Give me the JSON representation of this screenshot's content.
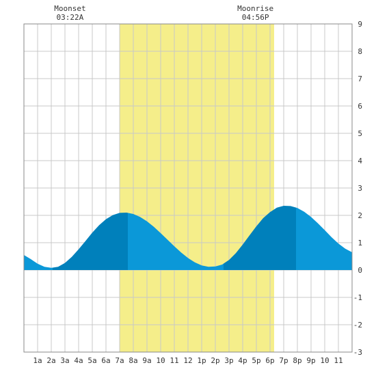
{
  "chart_data": {
    "type": "area",
    "title": "",
    "xlabel": "",
    "ylabel": "",
    "xlim": [
      0,
      24
    ],
    "ylim": [
      -3,
      9
    ],
    "grid": true,
    "x_ticks": [
      {
        "x": 1,
        "label": "1a"
      },
      {
        "x": 2,
        "label": "2a"
      },
      {
        "x": 3,
        "label": "3a"
      },
      {
        "x": 4,
        "label": "4a"
      },
      {
        "x": 5,
        "label": "5a"
      },
      {
        "x": 6,
        "label": "6a"
      },
      {
        "x": 7,
        "label": "7a"
      },
      {
        "x": 8,
        "label": "8a"
      },
      {
        "x": 9,
        "label": "9a"
      },
      {
        "x": 10,
        "label": "10"
      },
      {
        "x": 11,
        "label": "11"
      },
      {
        "x": 12,
        "label": "12"
      },
      {
        "x": 13,
        "label": "1p"
      },
      {
        "x": 14,
        "label": "2p"
      },
      {
        "x": 15,
        "label": "3p"
      },
      {
        "x": 16,
        "label": "4p"
      },
      {
        "x": 17,
        "label": "5p"
      },
      {
        "x": 18,
        "label": "6p"
      },
      {
        "x": 19,
        "label": "7p"
      },
      {
        "x": 20,
        "label": "8p"
      },
      {
        "x": 21,
        "label": "9p"
      },
      {
        "x": 22,
        "label": "10"
      },
      {
        "x": 23,
        "label": "11"
      }
    ],
    "y_ticks": [
      "-3",
      "-2",
      "-1",
      "0",
      "1",
      "2",
      "3",
      "4",
      "5",
      "6",
      "7",
      "8",
      "9"
    ],
    "daylight": {
      "start": 7.0,
      "end": 18.3
    },
    "extrema": [
      {
        "x": 2.1,
        "y": 0.08,
        "kind": "low"
      },
      {
        "x": 7.6,
        "y": 2.1,
        "kind": "high"
      },
      {
        "x": 14.6,
        "y": 0.13,
        "kind": "low"
      },
      {
        "x": 19.9,
        "y": 2.35,
        "kind": "high"
      }
    ],
    "series": [
      {
        "x": [
          0,
          0.5,
          1,
          1.5,
          2,
          2.5,
          3,
          3.5,
          4,
          4.5,
          5,
          5.5,
          6,
          6.5,
          7,
          7.5,
          8,
          8.5,
          9,
          9.5,
          10,
          10.5,
          11,
          11.5,
          12,
          12.5,
          13,
          13.5,
          14,
          14.5,
          15,
          15.5,
          16,
          16.5,
          17,
          17.5,
          18,
          18.5,
          19,
          19.5,
          20,
          20.5,
          21,
          21.5,
          22,
          22.5,
          23,
          23.5,
          24
        ],
        "values": [
          0.55,
          0.4,
          0.23,
          0.12,
          0.08,
          0.12,
          0.26,
          0.48,
          0.76,
          1.06,
          1.37,
          1.64,
          1.86,
          2.01,
          2.09,
          2.1,
          2.05,
          1.94,
          1.78,
          1.58,
          1.35,
          1.11,
          0.87,
          0.64,
          0.44,
          0.28,
          0.17,
          0.12,
          0.13,
          0.2,
          0.37,
          0.62,
          0.93,
          1.27,
          1.6,
          1.9,
          2.12,
          2.28,
          2.35,
          2.34,
          2.27,
          2.13,
          1.94,
          1.71,
          1.46,
          1.2,
          0.97,
          0.78,
          0.65
        ]
      }
    ],
    "annotations": [
      {
        "label": "Moonset",
        "time": "03:22A",
        "x": 3.37
      },
      {
        "label": "Moonrise",
        "time": "04:56P",
        "x": 16.93
      }
    ],
    "colors": {
      "daylight": "#f5ee8a",
      "tide_light": "#0b98d8",
      "tide_dark": "#0080bb",
      "grid": "#c8c8c8",
      "border": "#888888"
    }
  }
}
